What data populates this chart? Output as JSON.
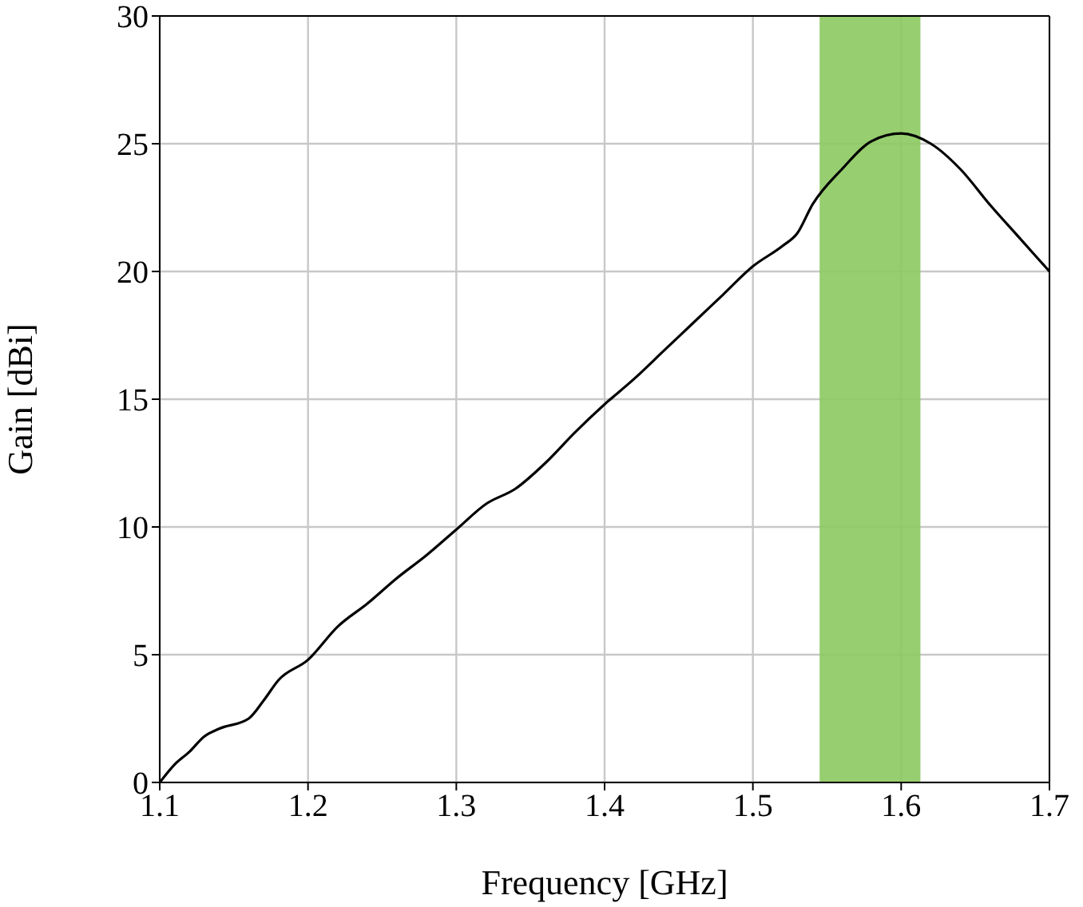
{
  "chart_data": {
    "type": "line",
    "xlabel": "Frequency [GHz]",
    "ylabel": "Gain [dBi]",
    "x": [
      1.1,
      1.11,
      1.12,
      1.13,
      1.14,
      1.16,
      1.17,
      1.18,
      1.2,
      1.22,
      1.24,
      1.26,
      1.28,
      1.3,
      1.32,
      1.34,
      1.36,
      1.38,
      1.4,
      1.42,
      1.44,
      1.46,
      1.48,
      1.5,
      1.52,
      1.53,
      1.54,
      1.56,
      1.58,
      1.6,
      1.62,
      1.64,
      1.66,
      1.68,
      1.7
    ],
    "series": [
      {
        "color": "#000000",
        "values": [
          0,
          0.7,
          1.2,
          1.8,
          2.1,
          2.5,
          3.2,
          4.0,
          4.8,
          6.1,
          7.0,
          8.0,
          8.9,
          9.9,
          10.9,
          11.5,
          12.5,
          13.7,
          14.8,
          15.8,
          16.9,
          18.0,
          19.1,
          20.2,
          21.0,
          21.5,
          22.6,
          24.0,
          25.1,
          25.4,
          25.0,
          24.0,
          22.6,
          21.3,
          20.0
        ]
      }
    ],
    "xlim": [
      1.1,
      1.7
    ],
    "xticks": [
      1.1,
      1.2,
      1.3,
      1.4,
      1.5,
      1.6,
      1.7
    ],
    "ylim": [
      0,
      30
    ],
    "yticks": [
      0,
      5,
      10,
      15,
      20,
      25,
      30
    ],
    "grid": true,
    "marker": "none",
    "line_style": "solid",
    "bands": [
      {
        "axis": "x",
        "from": 1.545,
        "to": 1.613,
        "color": "#8cc95f"
      }
    ]
  }
}
